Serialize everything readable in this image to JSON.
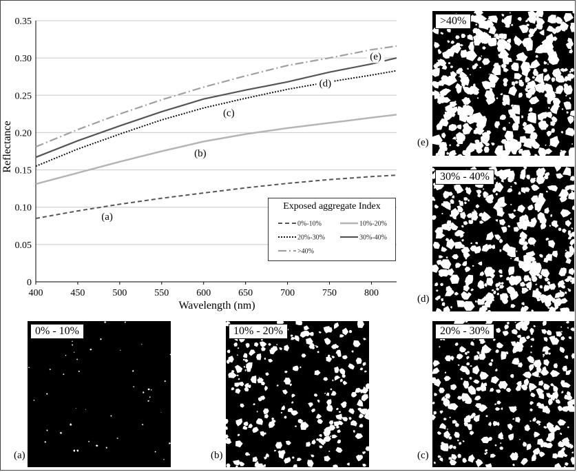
{
  "chart_data": {
    "type": "line",
    "xlabel": "Wavelength (nm)",
    "ylabel": "Reflectance",
    "xlim": [
      400,
      830
    ],
    "ylim": [
      0,
      0.35
    ],
    "xticks": [
      400,
      450,
      500,
      550,
      600,
      650,
      700,
      750,
      800
    ],
    "yticks": [
      "0",
      "0.05",
      "0.10",
      "0.15",
      "0.20",
      "0.25",
      "0.30",
      "0.35"
    ],
    "grid": "horizontal",
    "legend": {
      "title": "Exposed aggregate Index",
      "placement": "center-right"
    },
    "x": [
      400,
      450,
      500,
      550,
      600,
      650,
      700,
      750,
      800,
      830
    ],
    "series": [
      {
        "name": "0%-10%",
        "tag": "(a)",
        "style": "dashed",
        "color": "#555555",
        "values": [
          0.085,
          0.095,
          0.104,
          0.112,
          0.119,
          0.126,
          0.132,
          0.137,
          0.141,
          0.143
        ]
      },
      {
        "name": "10%-20%",
        "tag": "(b)",
        "style": "solid-light",
        "color": "#b5b5b5",
        "values": [
          0.131,
          0.146,
          0.161,
          0.175,
          0.188,
          0.198,
          0.206,
          0.213,
          0.22,
          0.224
        ]
      },
      {
        "name": "20%-30%",
        "tag": "(c)",
        "style": "dotted",
        "color": "#111111",
        "values": [
          0.155,
          0.178,
          0.198,
          0.217,
          0.233,
          0.246,
          0.258,
          0.268,
          0.277,
          0.283
        ]
      },
      {
        "name": "30%-40%",
        "tag": "(d)",
        "style": "solid-dark",
        "color": "#555555",
        "values": [
          0.167,
          0.189,
          0.209,
          0.228,
          0.245,
          0.257,
          0.268,
          0.281,
          0.292,
          0.3
        ]
      },
      {
        "name": ">40%",
        "tag": "(e)",
        "style": "dashdot",
        "color": "#a0a0a0",
        "values": [
          0.181,
          0.204,
          0.225,
          0.244,
          0.261,
          0.276,
          0.29,
          0.3,
          0.311,
          0.316
        ]
      }
    ]
  },
  "panels": [
    {
      "id": "a",
      "label": "0% - 10%",
      "tag": "(a)",
      "density": 0.004
    },
    {
      "id": "b",
      "label": "10% - 20%",
      "tag": "(b)",
      "density": 0.24
    },
    {
      "id": "c",
      "label": "20% - 30%",
      "tag": "(c)",
      "density": 0.32
    },
    {
      "id": "d",
      "label": "30% - 40%",
      "tag": "(d)",
      "density": 0.4
    },
    {
      "id": "e",
      "label": ">40%",
      "tag": "(e)",
      "density": 0.45
    }
  ]
}
